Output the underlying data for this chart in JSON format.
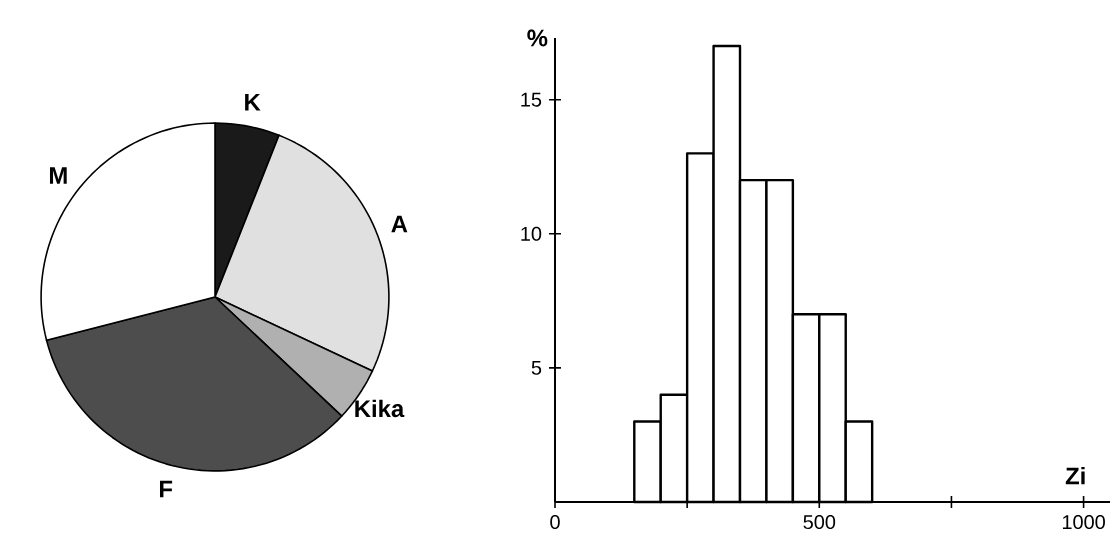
{
  "chart_data": [
    {
      "type": "pie",
      "categories": [
        "K",
        "A",
        "Kika",
        "F",
        "M"
      ],
      "values": [
        6,
        26,
        5,
        34,
        29
      ],
      "colors": [
        "#1a1a1a",
        "#e0e0e0",
        "#b0b0b0",
        "#4d4d4d",
        "#ffffff"
      ]
    },
    {
      "type": "histogram",
      "bins": [
        150,
        200,
        250,
        300,
        350,
        400,
        450,
        500,
        550,
        600
      ],
      "values": [
        3,
        4,
        13,
        17,
        12,
        12,
        7,
        7,
        3
      ],
      "color": "#ffffff",
      "xlabel": "Zi",
      "ylabel": "%",
      "xlim": [
        0,
        1050
      ],
      "ylim": [
        0,
        17.3
      ],
      "xticks": [
        0,
        {
          "value": 250,
          "label": null
        },
        500,
        {
          "value": 750,
          "label": null
        },
        1000
      ],
      "yticks": [
        5,
        10,
        15
      ]
    }
  ]
}
